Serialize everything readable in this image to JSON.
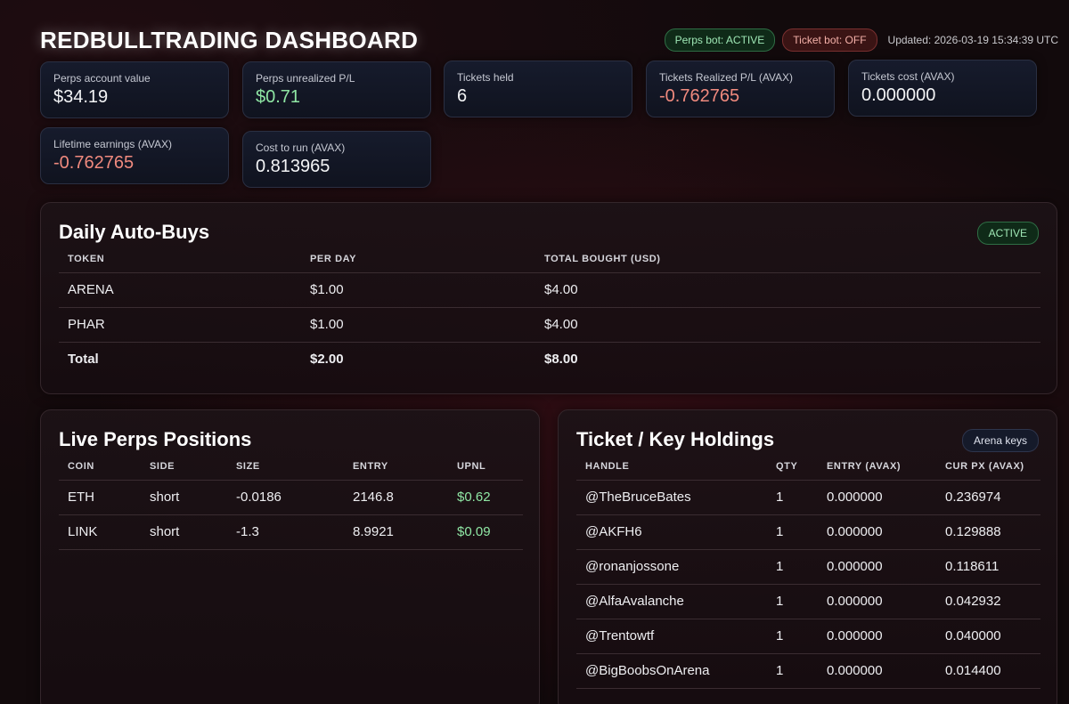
{
  "header": {
    "title": "REDBULLTRADING DASHBOARD",
    "perps_bot_status": "Perps bot: ACTIVE",
    "ticket_bot_status": "Ticket bot: OFF",
    "updated": "Updated: 2026-03-19 15:34:39 UTC"
  },
  "stats": {
    "perps_account_value": {
      "label": "Perps account value",
      "value": "$34.19"
    },
    "perps_unrealized_pl": {
      "label": "Perps unrealized P/L",
      "value": "$0.71"
    },
    "tickets_held": {
      "label": "Tickets held",
      "value": "6"
    },
    "tickets_realized_pl": {
      "label": "Tickets Realized P/L (AVAX)",
      "value": "-0.762765"
    },
    "tickets_cost": {
      "label": "Tickets cost (AVAX)",
      "value": "0.000000"
    },
    "lifetime_earnings": {
      "label": "Lifetime earnings (AVAX)",
      "value": "-0.762765"
    },
    "cost_to_run": {
      "label": "Cost to run (AVAX)",
      "value": "0.813965"
    }
  },
  "auto_buys": {
    "title": "Daily Auto-Buys",
    "badge": "ACTIVE",
    "columns": [
      "TOKEN",
      "PER DAY",
      "TOTAL BOUGHT (USD)"
    ],
    "rows": [
      [
        "ARENA",
        "$1.00",
        "$4.00"
      ],
      [
        "PHAR",
        "$1.00",
        "$4.00"
      ]
    ],
    "total": [
      "Total",
      "$2.00",
      "$8.00"
    ]
  },
  "perps": {
    "title": "Live Perps Positions",
    "columns": [
      "COIN",
      "SIDE",
      "SIZE",
      "ENTRY",
      "UPNL"
    ],
    "rows": [
      [
        "ETH",
        "short",
        "-0.0186",
        "2146.8",
        "$0.62"
      ],
      [
        "LINK",
        "short",
        "-1.3",
        "8.9921",
        "$0.09"
      ]
    ]
  },
  "tickets": {
    "title": "Ticket / Key Holdings",
    "badge": "Arena keys",
    "columns": [
      "HANDLE",
      "QTY",
      "ENTRY (AVAX)",
      "CUR PX (AVAX)"
    ],
    "rows": [
      [
        "@TheBruceBates",
        "1",
        "0.000000",
        "0.236974"
      ],
      [
        "@AKFH6",
        "1",
        "0.000000",
        "0.129888"
      ],
      [
        "@ronanjossone",
        "1",
        "0.000000",
        "0.118611"
      ],
      [
        "@AlfaAvalanche",
        "1",
        "0.000000",
        "0.042932"
      ],
      [
        "@Trentowtf",
        "1",
        "0.000000",
        "0.040000"
      ],
      [
        "@BigBoobsOnArena",
        "1",
        "0.000000",
        "0.014400"
      ]
    ]
  },
  "colors": {
    "positive": "#8fe6a4",
    "negative": "#f08a7e",
    "active_green": "#9ee6b4",
    "off_red": "#f3b0a8"
  }
}
